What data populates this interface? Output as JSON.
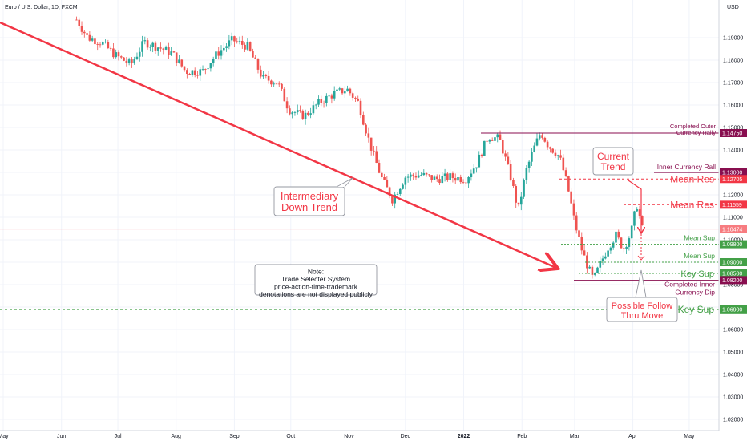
{
  "header": {
    "symbol_title": "Euro / U.S. Dollar, 1D, FXCM",
    "currency": "USD"
  },
  "chart_data": {
    "type": "candlestick",
    "ylim": [
      1.015,
      1.2
    ],
    "y_ticks": [
      "1.19000",
      "1.18000",
      "1.17000",
      "1.16000",
      "1.15000",
      "1.14000",
      "1.13000",
      "1.12000",
      "1.11000",
      "1.10000",
      "1.09000",
      "1.08000",
      "1.07000",
      "1.06000",
      "1.05000",
      "1.04000",
      "1.03000",
      "1.02000"
    ],
    "x_ticks": [
      "May",
      "Jun",
      "Jul",
      "Aug",
      "Sep",
      "Oct",
      "Nov",
      "Dec",
      "2022",
      "Feb",
      "Mar",
      "Apr",
      "May"
    ],
    "x_tick_days": [
      0,
      31,
      61,
      92,
      123,
      153,
      184,
      214,
      245,
      276,
      304,
      335,
      365
    ],
    "last_price_value": 1.10474,
    "candle_anchors": [
      [
        39,
        1.198
      ],
      [
        45,
        1.19
      ],
      [
        52,
        1.188
      ],
      [
        60,
        1.182
      ],
      [
        68,
        1.178
      ],
      [
        75,
        1.188
      ],
      [
        82,
        1.186
      ],
      [
        90,
        1.183
      ],
      [
        97,
        1.175
      ],
      [
        106,
        1.175
      ],
      [
        114,
        1.183
      ],
      [
        122,
        1.189
      ],
      [
        130,
        1.186
      ],
      [
        138,
        1.172
      ],
      [
        146,
        1.17
      ],
      [
        152,
        1.158
      ],
      [
        160,
        1.155
      ],
      [
        168,
        1.161
      ],
      [
        176,
        1.165
      ],
      [
        183,
        1.167
      ],
      [
        189,
        1.161
      ],
      [
        195,
        1.143
      ],
      [
        201,
        1.128
      ],
      [
        207,
        1.118
      ],
      [
        214,
        1.128
      ],
      [
        222,
        1.129
      ],
      [
        230,
        1.127
      ],
      [
        238,
        1.128
      ],
      [
        246,
        1.127
      ],
      [
        252,
        1.134
      ],
      [
        258,
        1.146
      ],
      [
        264,
        1.145
      ],
      [
        270,
        1.128
      ],
      [
        274,
        1.113
      ],
      [
        278,
        1.13
      ],
      [
        282,
        1.14
      ],
      [
        286,
        1.148
      ],
      [
        290,
        1.142
      ],
      [
        296,
        1.137
      ],
      [
        300,
        1.125
      ],
      [
        304,
        1.108
      ],
      [
        308,
        1.095
      ],
      [
        311,
        1.088
      ],
      [
        314,
        1.082
      ],
      [
        318,
        1.09
      ],
      [
        322,
        1.097
      ],
      [
        326,
        1.102
      ],
      [
        330,
        1.096
      ],
      [
        334,
        1.103
      ],
      [
        337,
        1.116
      ],
      [
        340,
        1.105
      ]
    ],
    "levels": [
      {
        "label": "Completed Outer Currency Rally",
        "value": 1.1475,
        "value_text": "1.14750",
        "color": "#880e4f"
      },
      {
        "label": "Inner Currency Rall",
        "value": 1.13,
        "value_text": "1.13000",
        "color": "#880e4f"
      },
      {
        "label": "Mean Res",
        "value": 1.12705,
        "value_text": "1.12705",
        "color": "#f23645"
      },
      {
        "label": "Mean Res",
        "value": 1.11559,
        "value_text": "1.11559",
        "color": "#f23645"
      },
      {
        "label": "Mean Sup",
        "value": 1.098,
        "value_text": "1.09800",
        "color": "#43a047"
      },
      {
        "label": "Mean Sup",
        "value": 1.09,
        "value_text": "1.09000",
        "color": "#43a047"
      },
      {
        "label": "Key Sup",
        "value": 1.085,
        "value_text": "1.08500",
        "color": "#43a047"
      },
      {
        "label": "Completed Inner Currency Dip",
        "value": 1.082,
        "value_text": "1.08200",
        "color": "#880e4f"
      },
      {
        "label": "Key Sup",
        "value": 1.069,
        "value_text": "1.06900",
        "color": "#43a047"
      }
    ],
    "annotations": {
      "intermediary": "Intermediary Down Trend",
      "current_trend": "Current Trend",
      "follow_thru": "Possible Follow Thru Move",
      "note": [
        "Note:",
        "Trade Selecter System",
        "price-action-time-trademark",
        "denotations are not displayed publicly"
      ]
    },
    "colors": {
      "up": "#26a69a",
      "down": "#ef5350",
      "trend": "#f23645",
      "resistance": "#f23645",
      "support": "#43a047",
      "rally": "#880e4f",
      "last_price": "#f77c80"
    }
  }
}
